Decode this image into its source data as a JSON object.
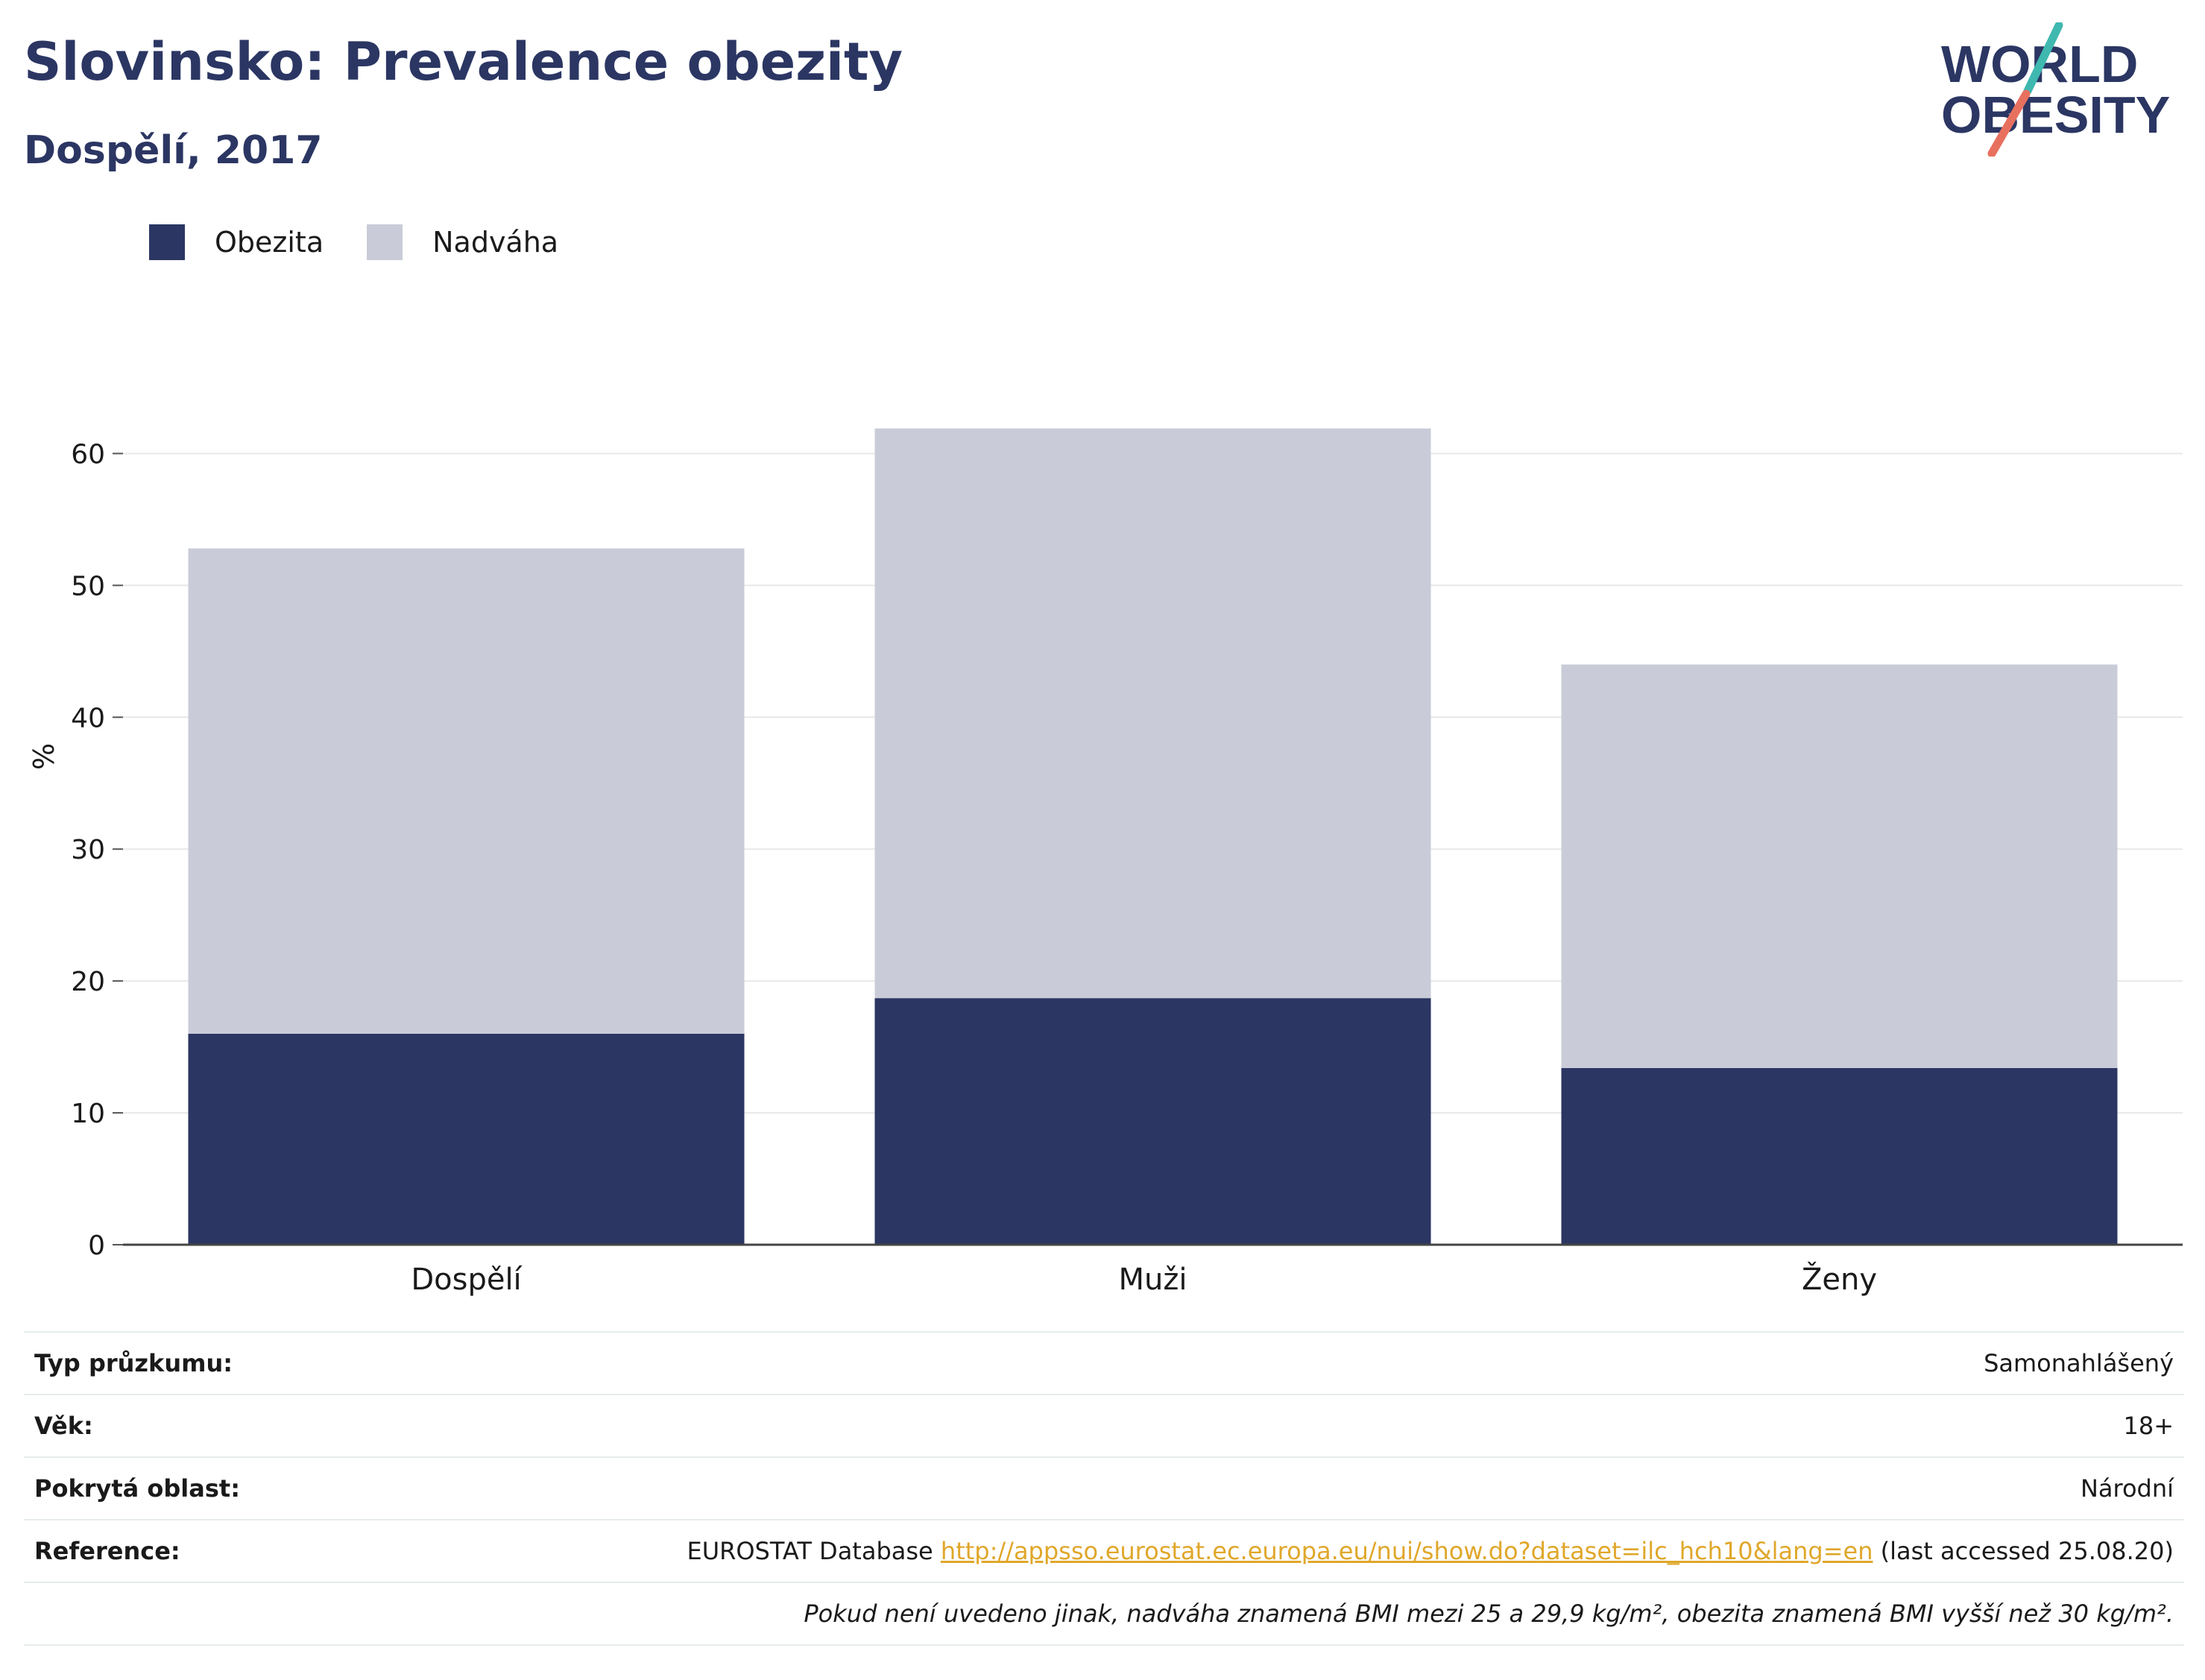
{
  "header": {
    "title": "Slovinsko: Prevalence obezity",
    "subtitle": "Dospělí, 2017"
  },
  "logo": {
    "line1": "WORLD",
    "line2": "OBESITY"
  },
  "colors": {
    "obesity": "#2b3663",
    "overweight": "#c9ccd8",
    "accent_teal": "#3fb8b0",
    "accent_coral": "#e8705f",
    "link": "#e0a72a"
  },
  "chart_data": {
    "type": "bar",
    "stacked": true,
    "categories": [
      "Dospělí",
      "Muži",
      "Ženy"
    ],
    "series": [
      {
        "name": "Obezita",
        "values": [
          16.0,
          18.7,
          13.4
        ]
      },
      {
        "name": "Nadváha",
        "values": [
          36.8,
          43.2,
          30.6
        ]
      }
    ],
    "ylabel": "%",
    "ylim": [
      0,
      65
    ],
    "yticks": [
      0,
      10,
      20,
      30,
      40,
      50,
      60
    ],
    "grid": true,
    "legend": "top-left"
  },
  "info": {
    "rows": [
      {
        "label": "Typ průzkumu:",
        "value": "Samonahlášený"
      },
      {
        "label": "Věk:",
        "value": "18+"
      },
      {
        "label": "Pokrytá oblast:",
        "value": "Národní"
      }
    ],
    "reference": {
      "label": "Reference:",
      "prefix": "EUROSTAT Database",
      "link": "http://appsso.eurostat.ec.europa.eu/nui/show.do?dataset=ilc_hch10&lang=en",
      "suffix": "(last accessed 25.08.20)"
    },
    "note": "Pokud není uvedeno jinak, nadváha znamená BMI mezi 25 a 29,9 kg/m², obezita znamená BMI vyšší než 30 kg/m²."
  }
}
